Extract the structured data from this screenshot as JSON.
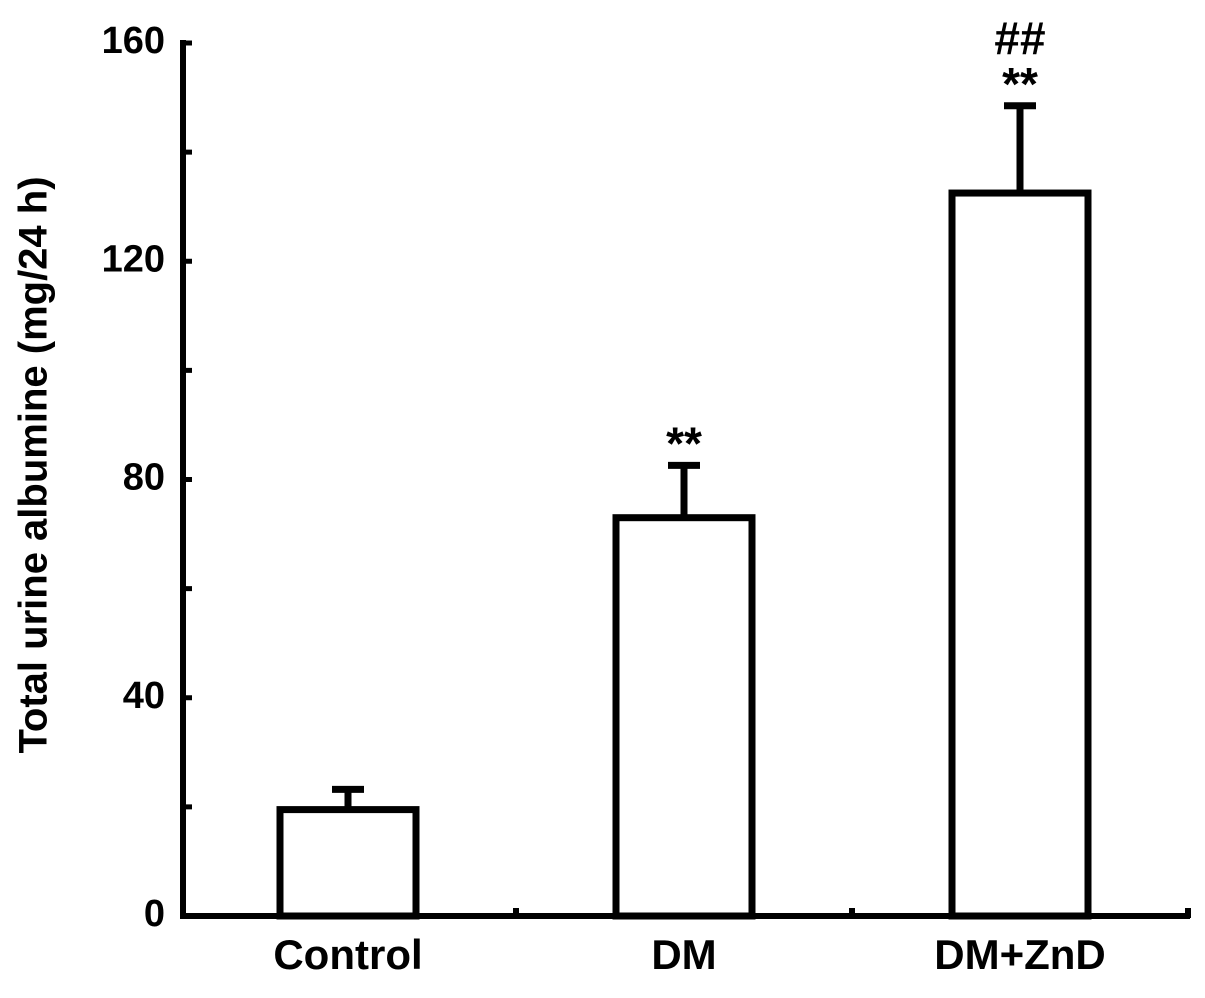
{
  "chart_data": {
    "type": "bar",
    "y_label": "Total urine albumine (mg/24 h)",
    "categories": [
      "Control",
      "DM",
      "DM+ZnD"
    ],
    "values": [
      19.5,
      73,
      132.5
    ],
    "errors": [
      3.7,
      9.6,
      16
    ],
    "color": "#ffffff",
    "edge_color": "#000000",
    "ylim": [
      0,
      160
    ],
    "yticks": [
      0,
      40,
      80,
      120,
      160
    ],
    "minor_yticks": [
      20,
      60,
      100,
      140
    ],
    "annotations": [
      {
        "category": "DM",
        "lines": [
          "**"
        ]
      },
      {
        "category": "DM+ZnD",
        "lines": [
          "##",
          "**"
        ]
      }
    ]
  }
}
